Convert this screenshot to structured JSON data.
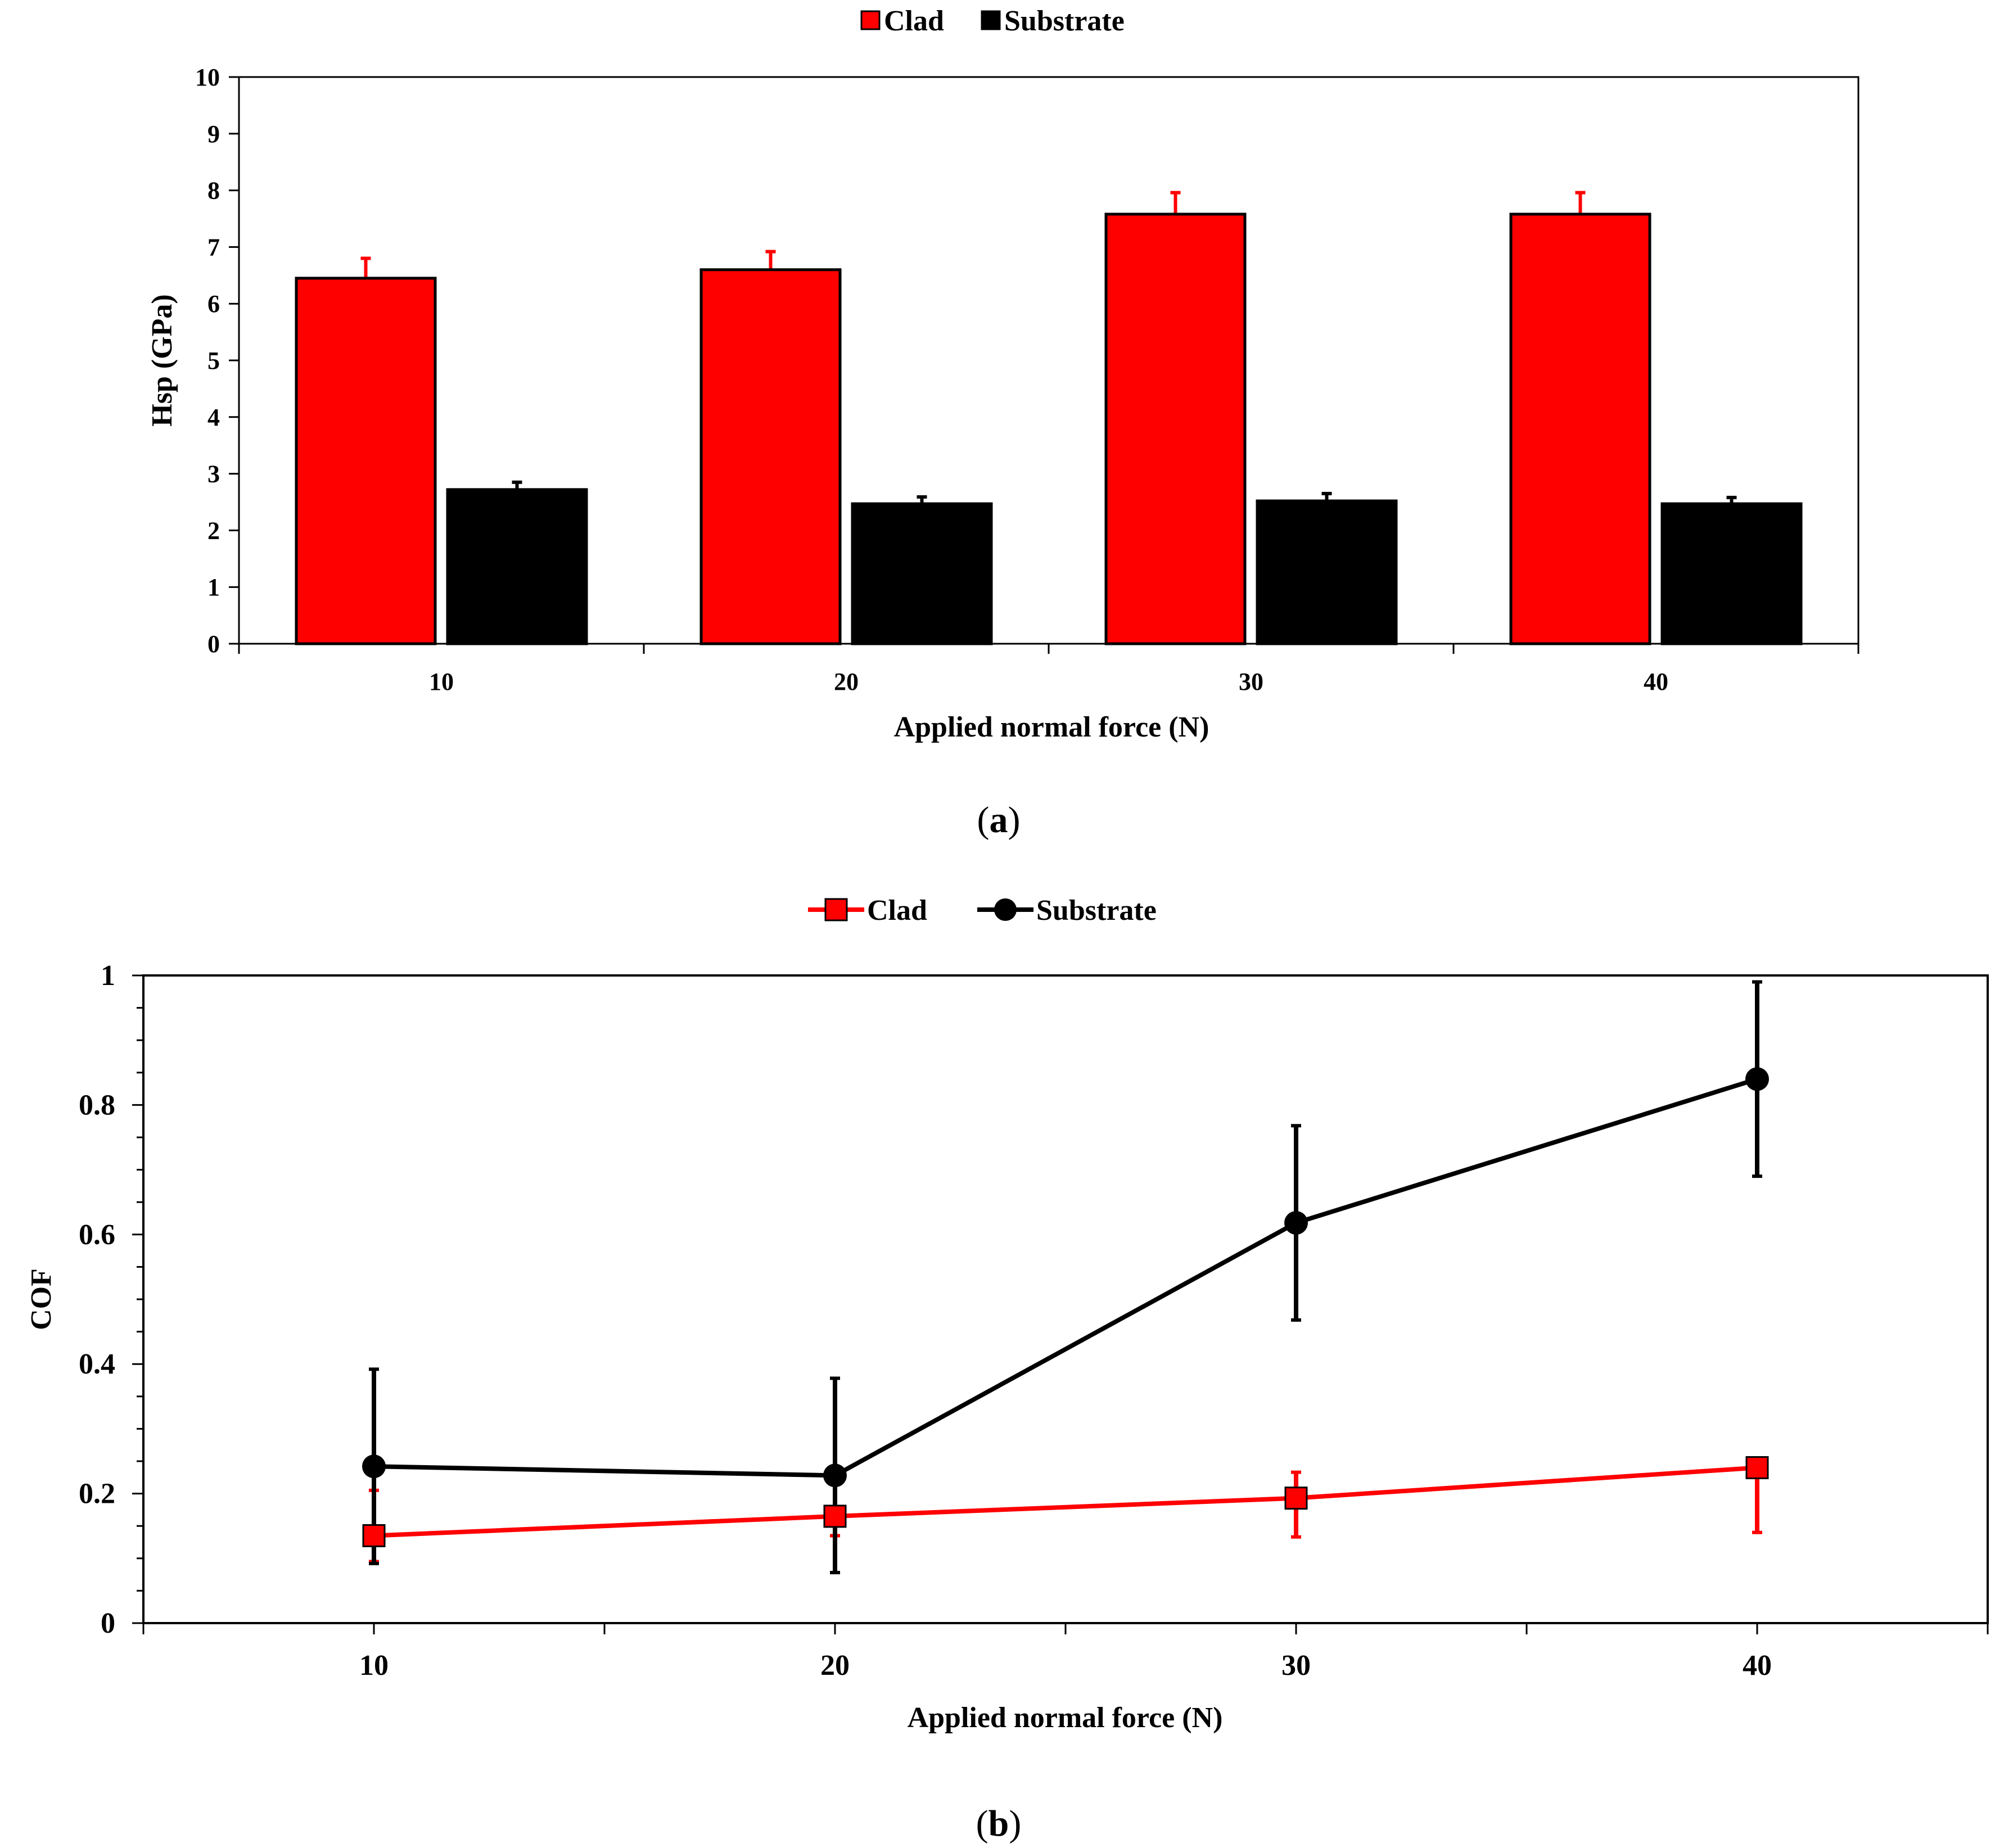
{
  "colors": {
    "clad": "#ff0000",
    "substrate": "#000000",
    "axis": "#000000"
  },
  "chart_data": [
    {
      "type": "bar",
      "panel": "(a)",
      "caption_letter": "a",
      "legend": [
        "Clad",
        "Substrate"
      ],
      "legend_placement": "top-center",
      "xlabel": "Applied normal force (N)",
      "ylabel": "Hsp (GPa)",
      "categories": [
        "10",
        "20",
        "30",
        "40"
      ],
      "ylim": [
        0,
        10
      ],
      "yticks": [
        "0",
        "1",
        "2",
        "3",
        "4",
        "5",
        "6",
        "7",
        "8",
        "9",
        "10"
      ],
      "series": [
        {
          "name": "Clad",
          "values": [
            6.45,
            6.6,
            7.58,
            7.58
          ],
          "errors": [
            0.35,
            0.32,
            0.38,
            0.38
          ]
        },
        {
          "name": "Substrate",
          "values": [
            2.72,
            2.47,
            2.52,
            2.47
          ],
          "errors": [
            0.13,
            0.12,
            0.13,
            0.11
          ]
        }
      ]
    },
    {
      "type": "line",
      "panel": "(b)",
      "caption_letter": "b",
      "legend": [
        "Clad",
        "Substrate"
      ],
      "legend_placement": "top-center",
      "xlabel": "Applied normal force (N)",
      "ylabel": "COF",
      "x": [
        10,
        20,
        30,
        40
      ],
      "xlim": [
        5,
        45
      ],
      "xticks": [
        "10",
        "20",
        "30",
        "40"
      ],
      "ylim": [
        0,
        1
      ],
      "yticks": [
        "0",
        "0.2",
        "0.4",
        "0.6",
        "0.8",
        "1"
      ],
      "series": [
        {
          "name": "Clad",
          "marker": "square",
          "values": [
            0.135,
            0.165,
            0.193,
            0.24
          ],
          "err_low": [
            0.04,
            0.03,
            0.06,
            0.1
          ],
          "err_high": [
            0.07,
            0.0,
            0.04,
            0.0
          ]
        },
        {
          "name": "Substrate",
          "marker": "circle",
          "values": [
            0.242,
            0.228,
            0.618,
            0.84
          ],
          "err_low": [
            0.15,
            0.15,
            0.15,
            0.15
          ],
          "err_high": [
            0.15,
            0.15,
            0.15,
            0.15
          ]
        }
      ]
    }
  ]
}
